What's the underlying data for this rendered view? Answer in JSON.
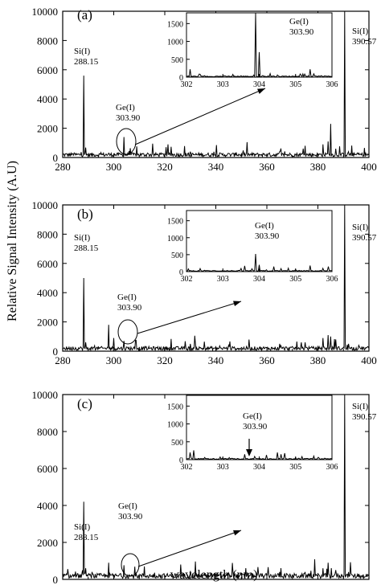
{
  "figure": {
    "ylabel": "Relative Signal Intensity (A.U)",
    "xlabel": "wavelength (nm)"
  },
  "chart_data": [
    {
      "type": "line",
      "panel_label": "(a)",
      "xlim": [
        280,
        400
      ],
      "ylim": [
        0,
        10000
      ],
      "x_ticks": [
        280,
        300,
        320,
        340,
        360,
        380,
        400
      ],
      "y_ticks": [
        0,
        2000,
        4000,
        6000,
        8000,
        10000
      ],
      "peaks": [
        [
          284,
          250
        ],
        [
          288.15,
          5600
        ],
        [
          289,
          500
        ],
        [
          298,
          300
        ],
        [
          303.9,
          1400
        ],
        [
          330,
          400
        ],
        [
          348,
          350
        ],
        [
          365,
          400
        ],
        [
          375,
          800
        ],
        [
          382,
          900
        ],
        [
          384,
          1100
        ],
        [
          385,
          2300
        ],
        [
          387,
          600
        ],
        [
          390.57,
          10000
        ],
        [
          392,
          400
        ],
        [
          396,
          300
        ]
      ],
      "annotations": [
        {
          "line1": "Si(I)",
          "line2": "288.15"
        },
        {
          "line1": "Ge(I)",
          "line2": "303.90"
        },
        {
          "line1": "Si(I)",
          "line2": "390.57"
        }
      ],
      "inset": {
        "xlim": [
          302,
          306
        ],
        "ylim": [
          0,
          1800
        ],
        "x_ticks": [
          302,
          303,
          304,
          305,
          306
        ],
        "y_ticks": [
          0,
          500,
          1000,
          1500
        ],
        "peaks": [
          [
            302.1,
            220
          ],
          [
            302.5,
            40
          ],
          [
            303.0,
            30
          ],
          [
            303.5,
            40
          ],
          [
            303.9,
            1800
          ],
          [
            304.0,
            700
          ],
          [
            304.3,
            100
          ],
          [
            304.5,
            60
          ],
          [
            305.0,
            40
          ],
          [
            305.4,
            220
          ],
          [
            305.7,
            40
          ]
        ],
        "label_line1": "Ge(I)",
        "label_line2": "303.90"
      }
    },
    {
      "type": "line",
      "panel_label": "(b)",
      "xlim": [
        280,
        400
      ],
      "ylim": [
        0,
        10000
      ],
      "x_ticks": [
        280,
        300,
        320,
        340,
        360,
        380,
        400
      ],
      "y_ticks": [
        0,
        2000,
        4000,
        6000,
        8000,
        10000
      ],
      "peaks": [
        [
          284,
          300
        ],
        [
          288.15,
          5000
        ],
        [
          289,
          600
        ],
        [
          298,
          1800
        ],
        [
          300,
          900
        ],
        [
          303.9,
          700
        ],
        [
          330,
          500
        ],
        [
          345,
          400
        ],
        [
          365,
          500
        ],
        [
          375,
          600
        ],
        [
          382,
          900
        ],
        [
          384,
          1100
        ],
        [
          385,
          1000
        ],
        [
          387,
          800
        ],
        [
          390.57,
          10000
        ],
        [
          392,
          500
        ],
        [
          396,
          400
        ]
      ],
      "annotations": [
        {
          "line1": "Si(I)",
          "line2": "288.15"
        },
        {
          "line1": "Ge(I)",
          "line2": "303.90"
        },
        {
          "line1": "Si(I)",
          "line2": "390.57"
        }
      ],
      "inset": {
        "xlim": [
          302,
          306
        ],
        "ylim": [
          0,
          1800
        ],
        "x_ticks": [
          302,
          303,
          304,
          305,
          306
        ],
        "y_ticks": [
          0,
          500,
          1000,
          1500
        ],
        "peaks": [
          [
            302.05,
            80
          ],
          [
            302.5,
            40
          ],
          [
            303.0,
            40
          ],
          [
            303.6,
            170
          ],
          [
            303.9,
            520
          ],
          [
            304.0,
            200
          ],
          [
            304.4,
            150
          ],
          [
            304.8,
            100
          ],
          [
            305.0,
            60
          ],
          [
            305.4,
            180
          ],
          [
            305.9,
            150
          ]
        ],
        "label_line1": "Ge(I)",
        "label_line2": "303.90"
      }
    },
    {
      "type": "line",
      "panel_label": "(c)",
      "xlim": [
        280,
        400
      ],
      "ylim": [
        0,
        10000
      ],
      "x_ticks": [
        280,
        300,
        320,
        340,
        360,
        380,
        400
      ],
      "y_ticks": [
        0,
        2000,
        4000,
        6000,
        8000,
        10000
      ],
      "peaks": [
        [
          284,
          250
        ],
        [
          288.15,
          4200
        ],
        [
          289,
          600
        ],
        [
          298,
          900
        ],
        [
          303.9,
          300
        ],
        [
          312,
          700
        ],
        [
          330,
          450
        ],
        [
          345,
          350
        ],
        [
          365,
          400
        ],
        [
          375,
          400
        ],
        [
          382,
          600
        ],
        [
          384,
          900
        ],
        [
          387,
          500
        ],
        [
          390.57,
          10000
        ],
        [
          392,
          400
        ],
        [
          396,
          300
        ]
      ],
      "annotations": [
        {
          "line1": "Si(I)",
          "line2": "288.15"
        },
        {
          "line1": "Ge(I)",
          "line2": "303.90"
        },
        {
          "line1": "Si(I)",
          "line2": "390.57"
        }
      ],
      "inset": {
        "xlim": [
          302,
          306
        ],
        "ylim": [
          0,
          1800
        ],
        "x_ticks": [
          302,
          303,
          304,
          305,
          306
        ],
        "y_ticks": [
          0,
          500,
          1000,
          1500
        ],
        "peaks": [
          [
            302.1,
            200
          ],
          [
            302.2,
            260
          ],
          [
            302.5,
            60
          ],
          [
            303.0,
            50
          ],
          [
            303.6,
            150
          ],
          [
            303.9,
            40
          ],
          [
            304.2,
            130
          ],
          [
            304.5,
            200
          ],
          [
            304.6,
            150
          ],
          [
            304.7,
            180
          ],
          [
            305.0,
            60
          ],
          [
            305.5,
            100
          ],
          [
            305.8,
            40
          ]
        ],
        "label_line1": "Ge(I)",
        "label_line2": "303.90"
      }
    }
  ]
}
